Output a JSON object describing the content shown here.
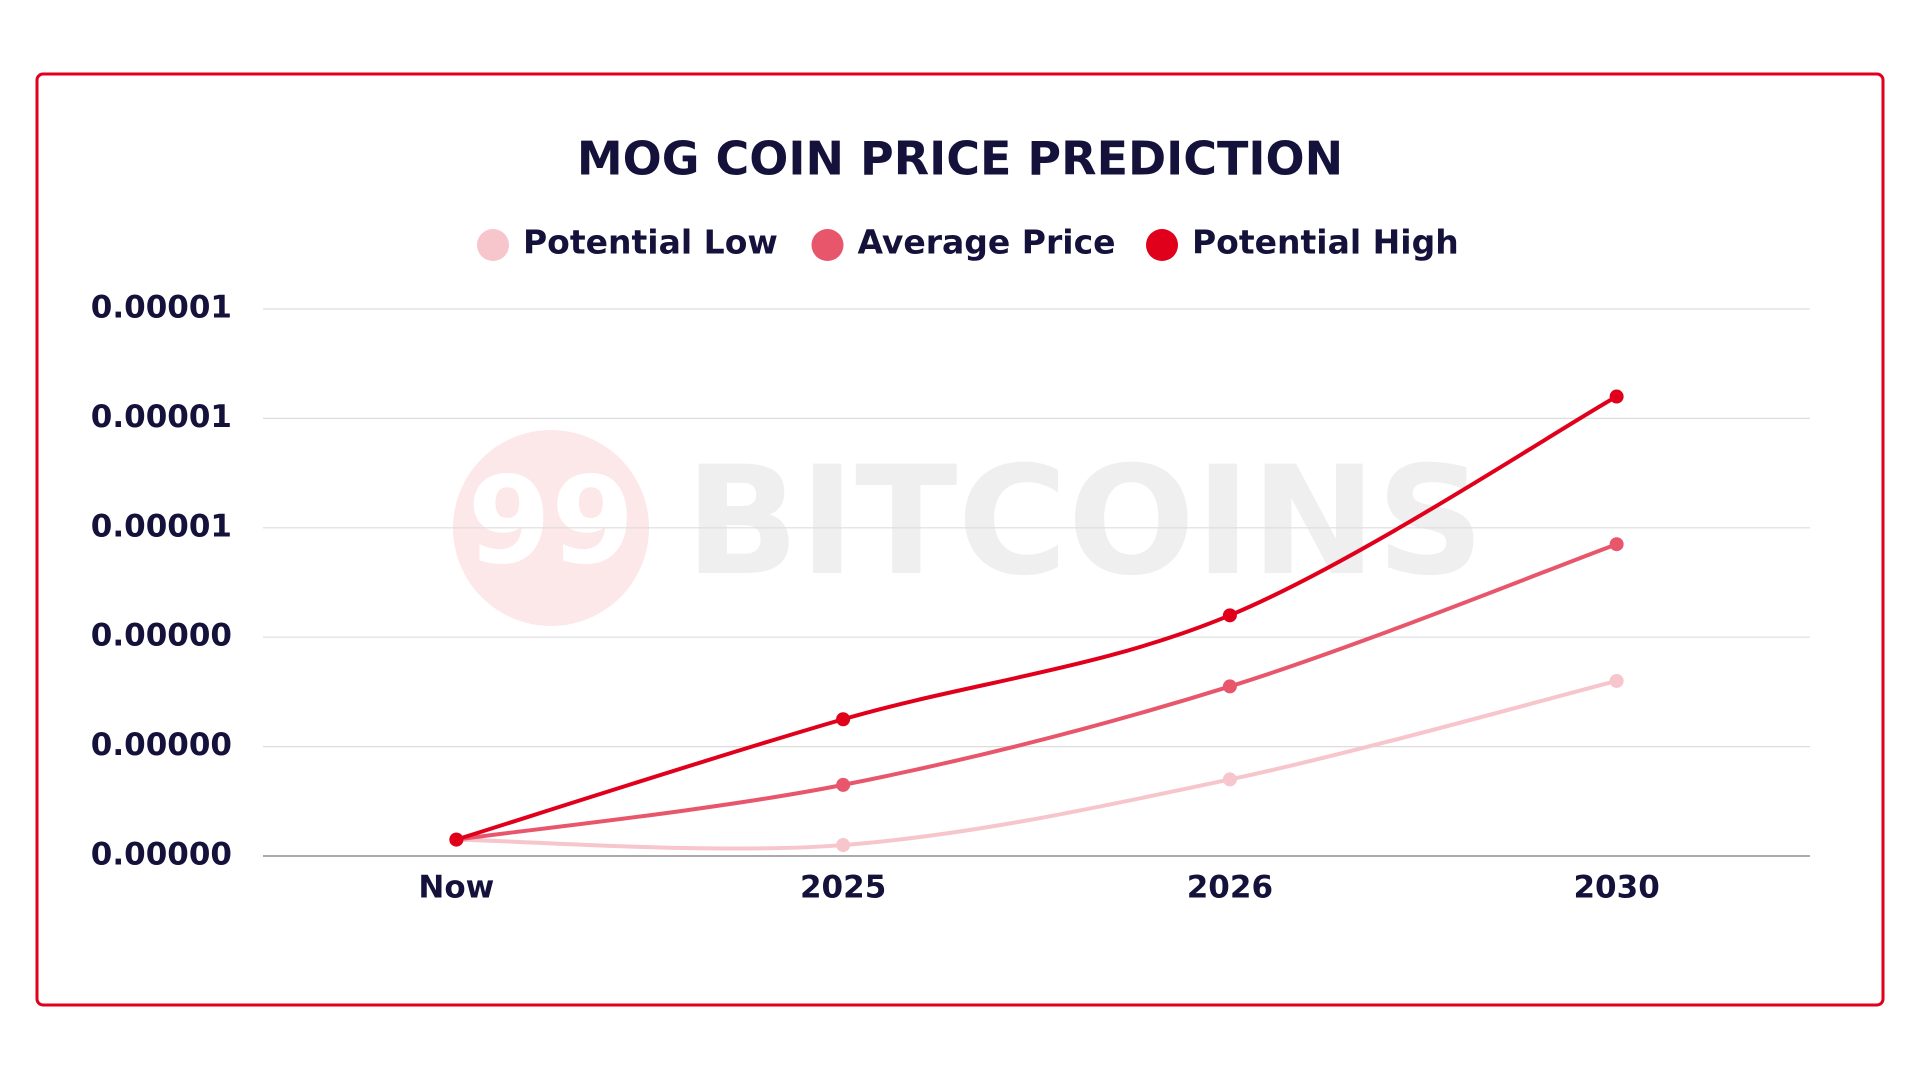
{
  "watermark_logo": "99",
  "watermark_text": "BITCOINS",
  "chart_data": {
    "type": "line",
    "title": "MOG COIN PRICE PREDICTION",
    "categories": [
      "Now",
      "2025",
      "2026",
      "2030"
    ],
    "series": [
      {
        "name": "Potential Low",
        "color": "#f7c5cc",
        "values": [
          3e-07,
          2e-07,
          1.4e-06,
          3.2e-06
        ]
      },
      {
        "name": "Average Price",
        "color": "#e8566c",
        "values": [
          3e-07,
          1.3e-06,
          3.1e-06,
          5.7e-06
        ]
      },
      {
        "name": "Potential High",
        "color": "#e0001b",
        "values": [
          3e-07,
          2.5e-06,
          4.4e-06,
          8.4e-06
        ]
      }
    ],
    "ylim": [
      0,
      1e-05
    ],
    "yticks": [
      {
        "value": 0,
        "label": "0.00000"
      },
      {
        "value": 2e-06,
        "label": "0.00000"
      },
      {
        "value": 4e-06,
        "label": "0.00000"
      },
      {
        "value": 6e-06,
        "label": "0.00001"
      },
      {
        "value": 8e-06,
        "label": "0.00001"
      },
      1e-05
    ],
    "grid": true,
    "legend": "top"
  }
}
